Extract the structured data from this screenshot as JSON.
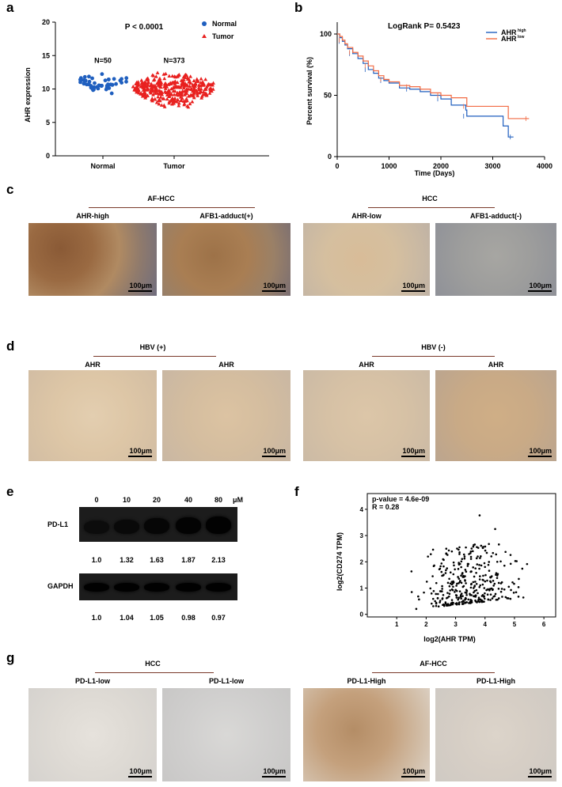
{
  "panels": {
    "a": "a",
    "b": "b",
    "c": "c",
    "d": "d",
    "e": "e",
    "f": "f",
    "g": "g"
  },
  "chart_data": [
    {
      "panel": "a",
      "type": "scatter",
      "title": "P < 0.0001",
      "ylabel": "AHR expression",
      "categories": [
        "Normal",
        "Tumor"
      ],
      "ylim": [
        0,
        20
      ],
      "yticks": [
        0,
        5,
        10,
        15,
        20
      ],
      "counts": [
        "N=50",
        "N=373"
      ],
      "series": [
        {
          "name": "Normal",
          "color": "#1f5fbf",
          "marker": "circle",
          "n": 50,
          "center": 11.7,
          "range": [
            9.2,
            12.5
          ]
        },
        {
          "name": "Tumor",
          "color": "#e8201f",
          "marker": "triangle",
          "n": 373,
          "center": 10.3,
          "range": [
            6.8,
            13.2
          ]
        }
      ]
    },
    {
      "panel": "b",
      "type": "line",
      "title": "LogRank P= 0.5423",
      "xlabel": "Time (Days)",
      "ylabel": "Percent survival (%)",
      "xlim": [
        0,
        4000
      ],
      "ylim": [
        0,
        100
      ],
      "xticks": [
        0,
        1000,
        2000,
        3000,
        4000
      ],
      "yticks": [
        0,
        50,
        100
      ],
      "series": [
        {
          "name": "AHR",
          "sup": "high",
          "color": "#1f5fbf",
          "x": [
            0,
            50,
            100,
            150,
            200,
            300,
            400,
            500,
            600,
            700,
            800,
            900,
            1000,
            1200,
            1400,
            1600,
            1800,
            2000,
            2200,
            2480,
            2500,
            3200,
            3300,
            3400
          ],
          "y": [
            100,
            97,
            94,
            91,
            88,
            84,
            80,
            76,
            71,
            68,
            64,
            62,
            60,
            56,
            55,
            53,
            50,
            47,
            42,
            38,
            33,
            25,
            16,
            16
          ]
        },
        {
          "name": "AHR",
          "sup": "low",
          "color": "#f26b43",
          "x": [
            0,
            50,
            100,
            150,
            200,
            300,
            400,
            500,
            600,
            700,
            800,
            900,
            1000,
            1200,
            1400,
            1600,
            1800,
            2000,
            2200,
            2480,
            2500,
            3200,
            3300,
            3700
          ],
          "y": [
            100,
            98,
            95,
            92,
            89,
            85,
            82,
            78,
            74,
            70,
            66,
            63,
            61,
            58,
            57,
            55,
            52,
            50,
            48,
            48,
            41,
            41,
            31,
            31
          ]
        }
      ]
    },
    {
      "panel": "f",
      "type": "scatter",
      "annotations": [
        "p-value = 4.6e-09",
        "R = 0.28"
      ],
      "xlabel": "log2(AHR TPM)",
      "ylabel": "log2(CD274 TPM)",
      "xlim": [
        0,
        6.4
      ],
      "ylim": [
        -0.1,
        4.6
      ],
      "xticks": [
        1,
        2,
        3,
        4,
        5,
        6
      ],
      "yticks": [
        0,
        1,
        2,
        3,
        4
      ],
      "n_points": 373
    }
  ],
  "panel_c": {
    "left_header": "AF-HCC",
    "right_header": "HCC",
    "images": [
      {
        "label": "AHR-high",
        "scale": "100μm"
      },
      {
        "label": "AFB1-adduct(+)",
        "scale": "100μm"
      },
      {
        "label": "AHR-low",
        "scale": "100μm"
      },
      {
        "label": "AFB1-adduct(-)",
        "scale": "100μm"
      }
    ]
  },
  "panel_d": {
    "left_header": "HBV (+)",
    "right_header": "HBV (-)",
    "images": [
      {
        "label": "AHR",
        "scale": "100μm"
      },
      {
        "label": "AHR",
        "scale": "100μm"
      },
      {
        "label": "AHR",
        "scale": "100μm"
      },
      {
        "label": "AHR",
        "scale": "100μm"
      }
    ]
  },
  "panel_e": {
    "doses": [
      "0",
      "10",
      "20",
      "40",
      "80"
    ],
    "unit": "μM",
    "rows": [
      {
        "name": "PD-L1",
        "values": [
          "1.0",
          "1.32",
          "1.63",
          "1.87",
          "2.13"
        ],
        "intensity": [
          0.35,
          0.5,
          0.7,
          0.85,
          0.95
        ]
      },
      {
        "name": "GAPDH",
        "values": [
          "1.0",
          "1.04",
          "1.05",
          "0.98",
          "0.97"
        ],
        "intensity": [
          1,
          1,
          1,
          1,
          1
        ]
      }
    ]
  },
  "panel_g": {
    "left_header": "HCC",
    "right_header": "AF-HCC",
    "images": [
      {
        "label": "PD-L1-low",
        "scale": "100μm"
      },
      {
        "label": "PD-L1-low",
        "scale": "100μm"
      },
      {
        "label": "PD-L1-High",
        "scale": "100μm"
      },
      {
        "label": "PD-L1-High",
        "scale": "100μm"
      }
    ]
  },
  "colors": {
    "normal": "#1f5fbf",
    "tumor": "#e8201f",
    "ahr_high": "#1f5fbf",
    "ahr_low": "#f26b43",
    "header_line": "#7a3a2a"
  }
}
